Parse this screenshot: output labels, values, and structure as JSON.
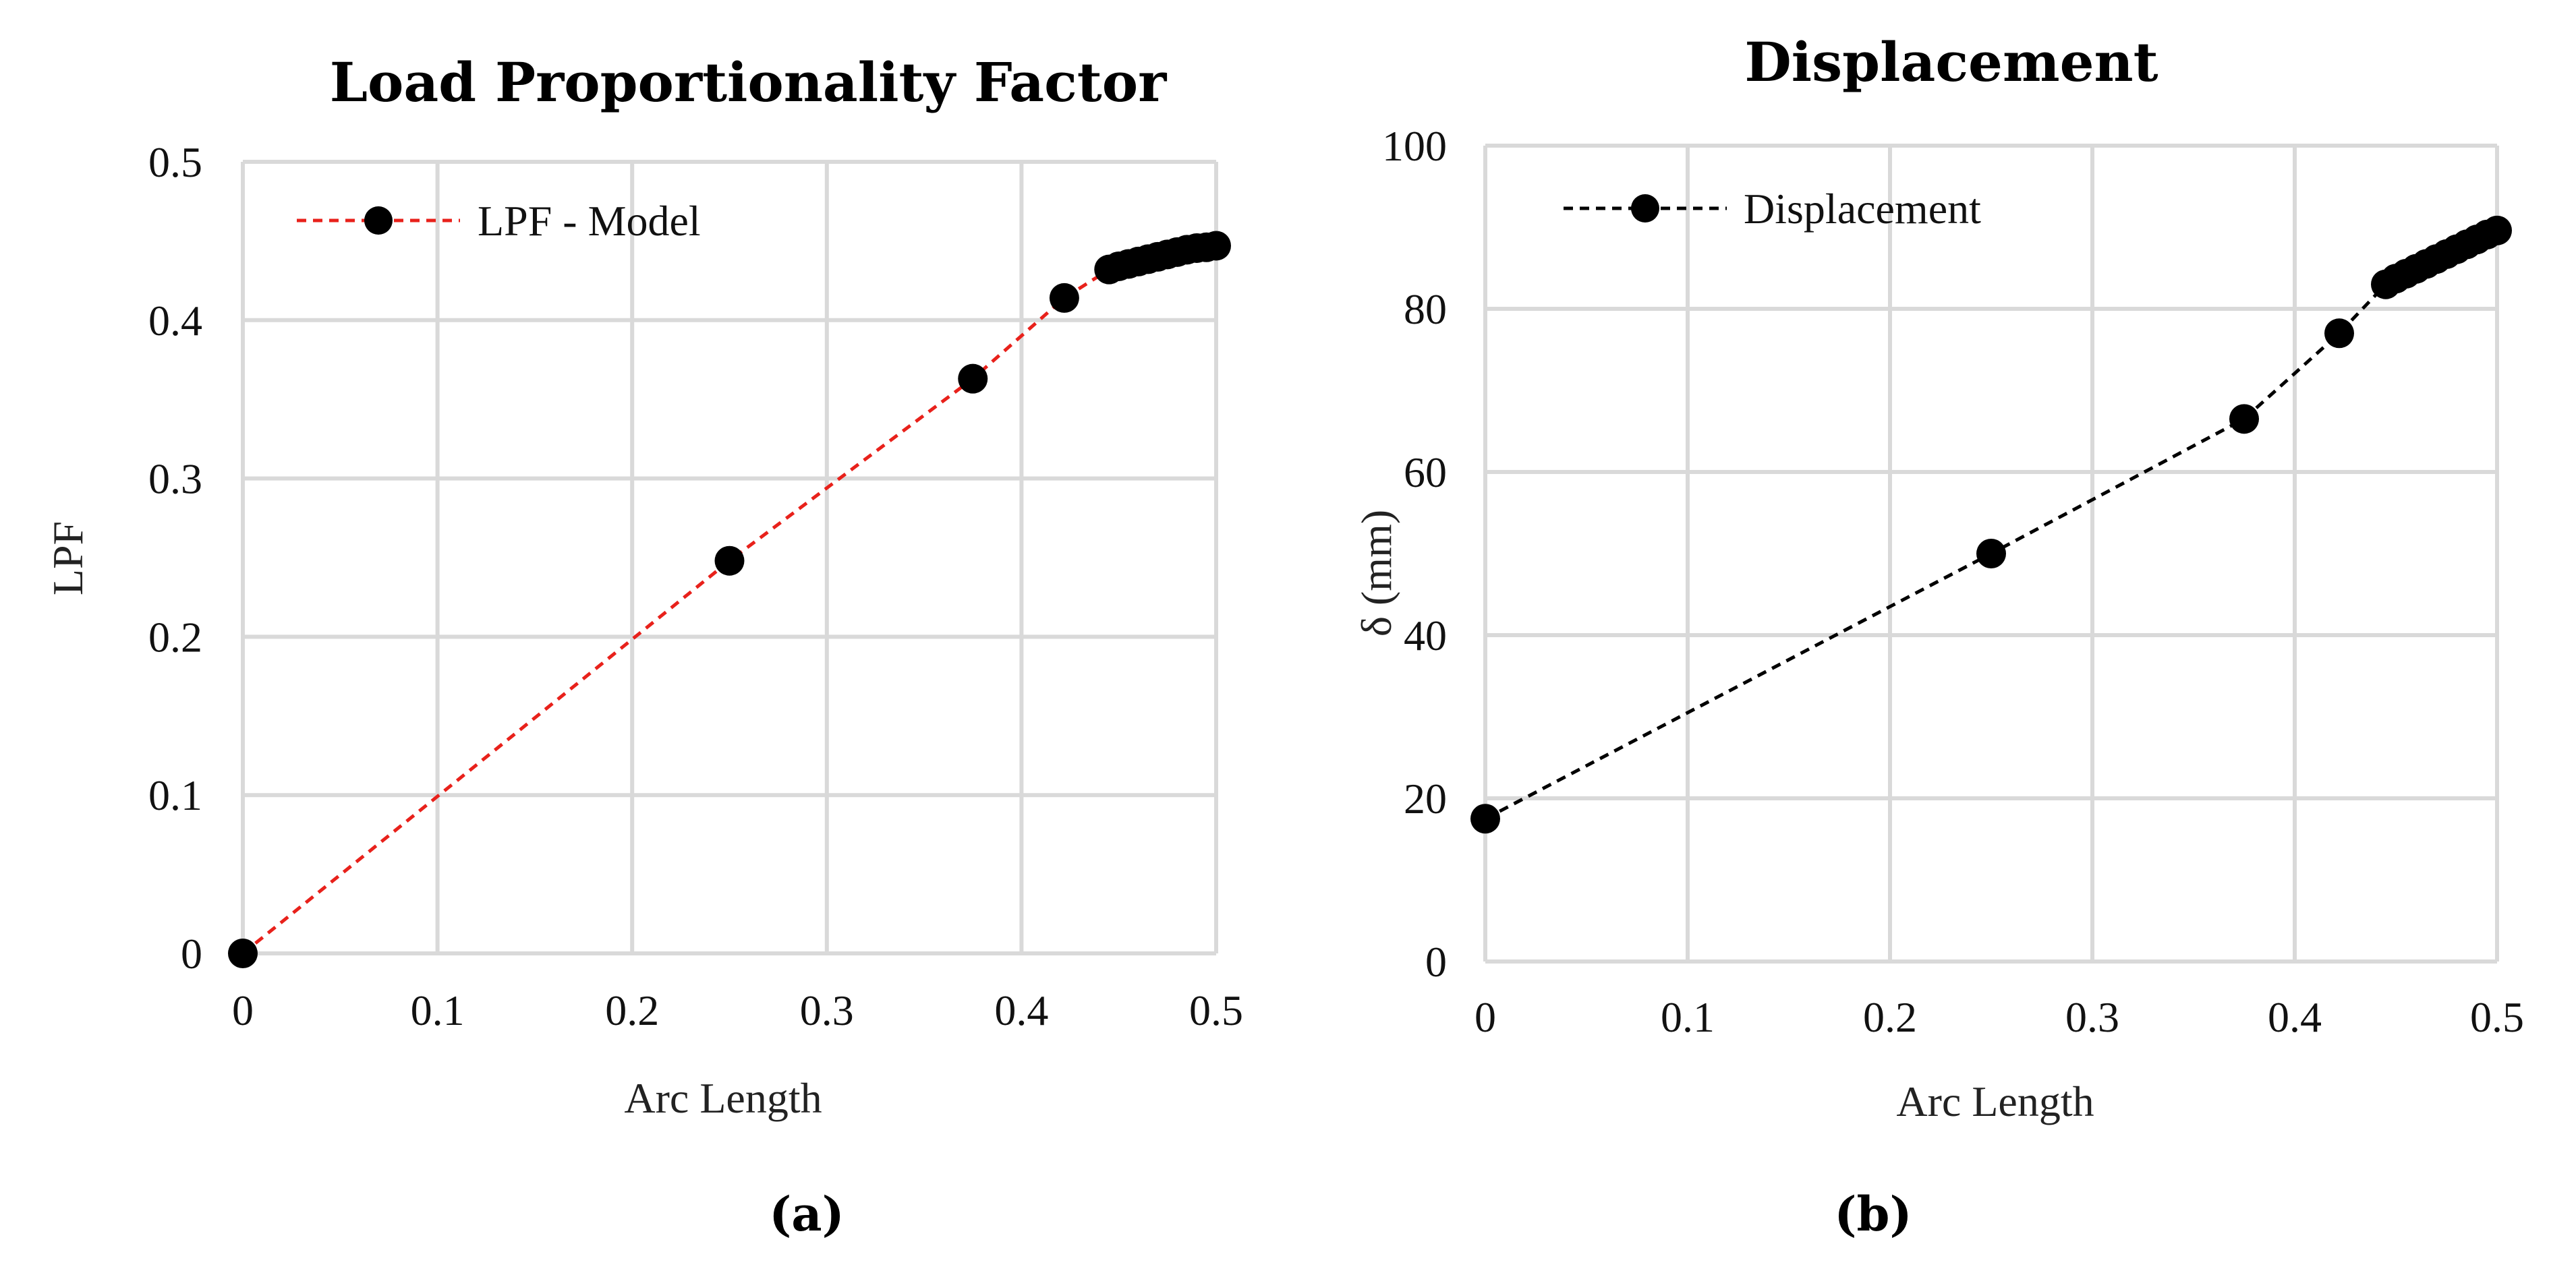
{
  "chart_data": [
    {
      "type": "line",
      "title": "Load Proportionality Factor",
      "xlabel": "Arc Length",
      "ylabel": "LPF",
      "xlim": [
        0,
        0.5
      ],
      "ylim": [
        0,
        0.5
      ],
      "x_ticks": [
        0,
        0.1,
        0.2,
        0.3,
        0.4,
        0.5
      ],
      "y_ticks": [
        0,
        0.1,
        0.2,
        0.3,
        0.4,
        0.5
      ],
      "x_tick_labels": [
        "0",
        "0.1",
        "0.2",
        "0.3",
        "0.4",
        "0.5"
      ],
      "y_tick_labels": [
        "0",
        "0.1",
        "0.2",
        "0.3",
        "0.4",
        "0.5"
      ],
      "grid": true,
      "legend": "top-left",
      "caption": "(a)",
      "series": [
        {
          "name": "LPF - Model",
          "color": "#e8211b",
          "line_style": "dashed",
          "marker": "circle",
          "marker_color": "#000000",
          "x": [
            0,
            0.25,
            0.375,
            0.422,
            0.445,
            0.45,
            0.455,
            0.46,
            0.465,
            0.47,
            0.475,
            0.48,
            0.485,
            0.49,
            0.495,
            0.5
          ],
          "y": [
            0,
            0.248,
            0.363,
            0.414,
            0.432,
            0.434,
            0.4355,
            0.437,
            0.4385,
            0.44,
            0.4415,
            0.443,
            0.4445,
            0.4455,
            0.446,
            0.447
          ]
        }
      ]
    },
    {
      "type": "line",
      "title": "Displacement",
      "xlabel": "Arc Length",
      "ylabel": "δ (mm)",
      "xlim": [
        0,
        0.5
      ],
      "ylim": [
        0,
        100
      ],
      "x_ticks": [
        0,
        0.1,
        0.2,
        0.3,
        0.4,
        0.5
      ],
      "y_ticks": [
        0,
        20,
        40,
        60,
        80,
        100
      ],
      "x_tick_labels": [
        "0",
        "0.1",
        "0.2",
        "0.3",
        "0.4",
        "0.5"
      ],
      "y_tick_labels": [
        "0",
        "20",
        "40",
        "60",
        "80",
        "100"
      ],
      "grid": true,
      "legend": "top-left",
      "caption": "(b)",
      "series": [
        {
          "name": "Displacement",
          "color": "#000000",
          "line_style": "dashed",
          "marker": "circle",
          "marker_color": "#000000",
          "x": [
            0,
            0.25,
            0.375,
            0.422,
            0.445,
            0.45,
            0.455,
            0.46,
            0.465,
            0.47,
            0.475,
            0.48,
            0.485,
            0.49,
            0.495,
            0.5
          ],
          "y": [
            17.5,
            50,
            66.5,
            77,
            83,
            83.7,
            84.3,
            84.9,
            85.5,
            86.1,
            86.7,
            87.3,
            87.9,
            88.5,
            89.1,
            89.6
          ]
        }
      ]
    }
  ]
}
